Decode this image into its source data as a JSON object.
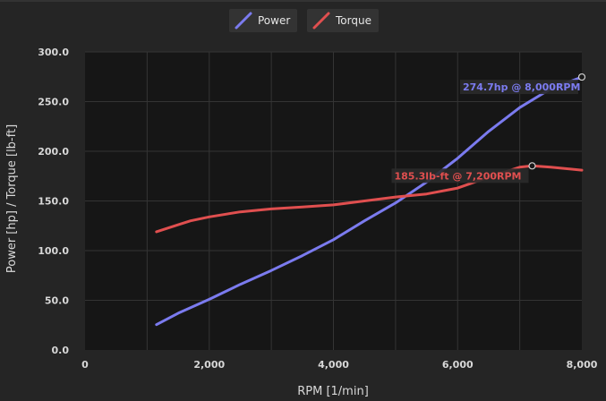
{
  "chart_data": {
    "type": "line",
    "xlabel": "RPM [1/min]",
    "ylabel": "Power [hp] / Torque [lb-ft]",
    "xlim": [
      0,
      8000
    ],
    "ylim": [
      0,
      300
    ],
    "xticks": [
      0,
      2000,
      4000,
      6000,
      8000
    ],
    "xtick_labels": [
      "0",
      "2,000",
      "4,000",
      "6,000",
      "8,000"
    ],
    "yticks": [
      0,
      50,
      100,
      150,
      200,
      250,
      300
    ],
    "ytick_labels": [
      "0.0",
      "50.0",
      "100.0",
      "150.0",
      "200.0",
      "250.0",
      "300.0"
    ],
    "grid": true,
    "legend_position": "top-center",
    "background": "#161616",
    "series": [
      {
        "name": "Power",
        "color": "#7b7bef",
        "x": [
          1150,
          1500,
          2000,
          2500,
          3000,
          3500,
          4000,
          4500,
          5000,
          5500,
          6000,
          6500,
          7000,
          7500,
          8000
        ],
        "y": [
          25.5,
          37,
          51,
          66,
          80,
          95,
          111,
          130,
          148,
          169,
          193,
          220,
          244,
          263,
          274.7
        ],
        "annotation": {
          "text": "274.7hp @ 8,000RPM",
          "x": 8000,
          "y": 274.7
        }
      },
      {
        "name": "Torque",
        "color": "#e04f4f",
        "x": [
          1150,
          1300,
          1500,
          1700,
          2000,
          2500,
          3000,
          3500,
          4000,
          4500,
          5000,
          5500,
          6000,
          6500,
          7000,
          7200,
          7500,
          8000
        ],
        "y": [
          119,
          122,
          126,
          130,
          134,
          139,
          142,
          144,
          146,
          150,
          154,
          157,
          163,
          174,
          184,
          185.3,
          184,
          181
        ],
        "annotation": {
          "text": "185.3lb-ft @ 7,200RPM",
          "x": 7200,
          "y": 185.3
        }
      }
    ]
  }
}
